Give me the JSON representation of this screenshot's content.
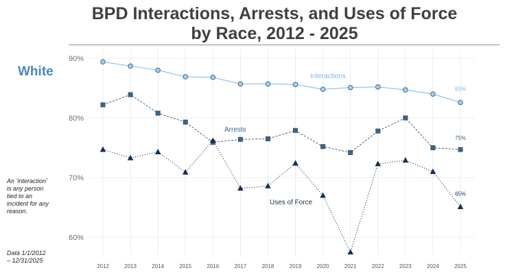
{
  "title_line1": "BPD Interactions, Arrests, and Uses of Force",
  "title_line2": "by Race, 2012 - 2025",
  "race_label": "White",
  "note_interaction": "An ‘interaction’ is any person tied to an incident for any reason.",
  "note_data_range": "Data 1/1/2012 – 12/31/2025",
  "colors": {
    "interactions": "#7ab8e6",
    "arrests": "#3d6587",
    "uses_of_force": "#15304f",
    "race_label": "#4a86c8",
    "grid": "#ececec"
  },
  "chart_data": {
    "type": "line",
    "x": [
      "2012",
      "2013",
      "2014",
      "2015",
      "2016",
      "2017",
      "2018",
      "2019",
      "2020",
      "2021",
      "2022",
      "2023",
      "2024",
      "2025"
    ],
    "ylim": [
      57,
      91
    ],
    "yticks": [
      "60%",
      "70%",
      "80%",
      "90%"
    ],
    "ytick_values": [
      60,
      70,
      80,
      90
    ],
    "grid": true,
    "series": [
      {
        "name": "Interactions",
        "line_style": "solid",
        "marker": "circle",
        "values": [
          89.4,
          88.7,
          88.0,
          86.9,
          86.8,
          85.7,
          85.7,
          85.6,
          84.8,
          85.1,
          85.2,
          84.7,
          84.0,
          82.6
        ],
        "end_label": "83%"
      },
      {
        "name": "Arrests",
        "line_style": "dashed",
        "marker": "square",
        "values": [
          82.2,
          83.9,
          80.8,
          79.3,
          75.9,
          76.4,
          76.5,
          77.9,
          75.2,
          74.2,
          77.8,
          80.0,
          75.0,
          74.7
        ],
        "end_label": "75%"
      },
      {
        "name": "Uses of Force",
        "line_style": "dotted",
        "marker": "triangle",
        "values": [
          74.7,
          73.3,
          74.3,
          70.9,
          76.2,
          68.2,
          68.6,
          72.4,
          67.0,
          57.5,
          72.3,
          72.9,
          71.0,
          65.1
        ],
        "end_label": "65%"
      }
    ]
  }
}
